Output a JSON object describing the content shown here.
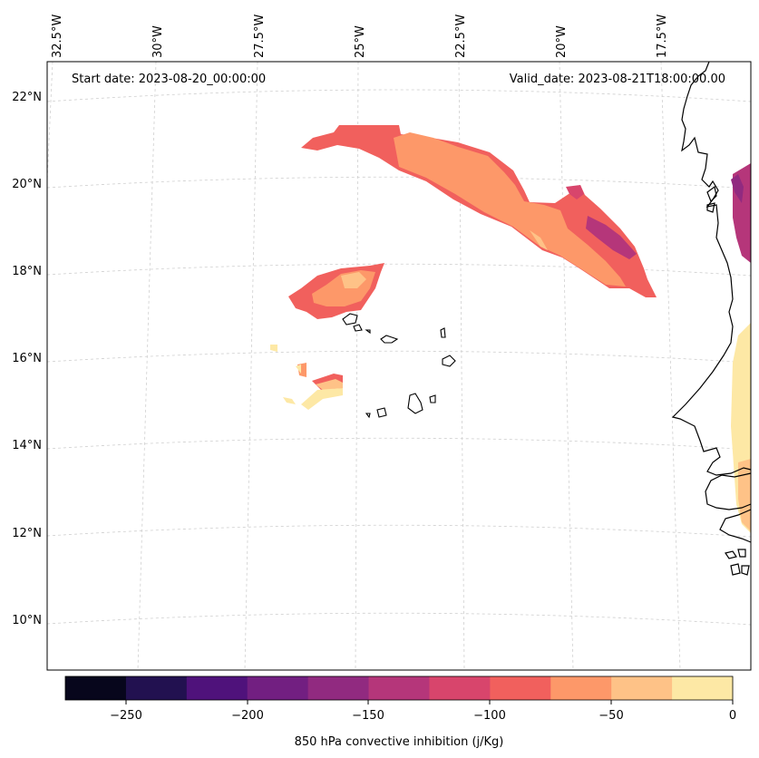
{
  "header": {
    "start_date": "Start date: 2023-08-20_00:00:00",
    "valid_date": "Valid_date: 2023-08-21T18:00:00.00"
  },
  "map": {
    "projection": "lambert-conformal",
    "region": "Cabo Verde and West African coast",
    "lon_labels": [
      "32.5°W",
      "30°W",
      "27.5°W",
      "25°W",
      "22.5°W",
      "20°W",
      "17.5°W"
    ],
    "lat_labels": [
      "22°N",
      "20°N",
      "18°N",
      "16°N",
      "14°N",
      "12°N",
      "10°N"
    ],
    "gridlines": true
  },
  "field": {
    "variable": "850 hPa convective inhibition",
    "units": "j/Kg",
    "colormap": "magma",
    "levels": [
      -275,
      -250,
      -225,
      -200,
      -175,
      -150,
      -125,
      -100,
      -75,
      -50,
      -25,
      0
    ]
  },
  "colorbar": {
    "label": "850 hPa convective inhibition (j/Kg)",
    "tick_labels": [
      "−250",
      "−200",
      "−150",
      "−100",
      "−50",
      "0"
    ],
    "colors": [
      "#07061c",
      "#221150",
      "#4f127b",
      "#721f81",
      "#912a80",
      "#b5367a",
      "#d8456c",
      "#f1605d",
      "#fd9869",
      "#fec287",
      "#fde8a5"
    ]
  }
}
